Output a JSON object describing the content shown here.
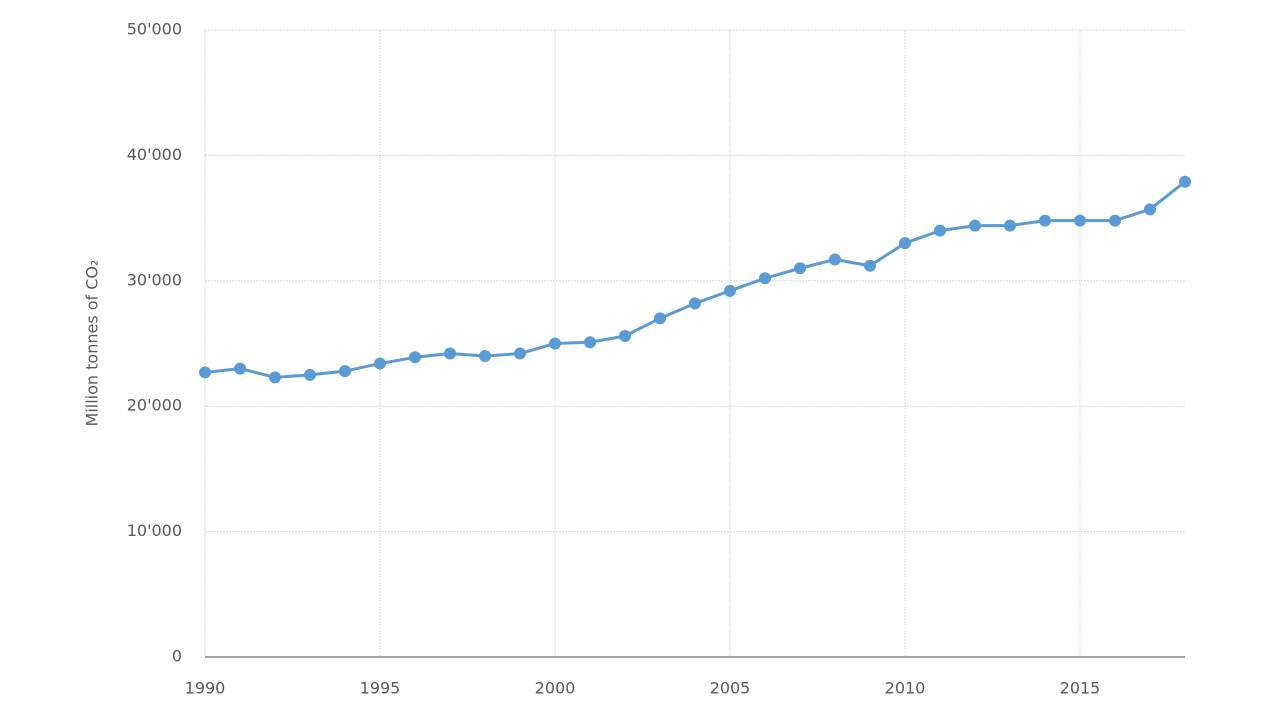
{
  "chart_data": {
    "type": "line",
    "y_label": "Million tonnes of CO₂",
    "x": [
      1990,
      1991,
      1992,
      1993,
      1994,
      1995,
      1996,
      1997,
      1998,
      1999,
      2000,
      2001,
      2002,
      2003,
      2004,
      2005,
      2006,
      2007,
      2008,
      2009,
      2010,
      2011,
      2012,
      2013,
      2014,
      2015,
      2016,
      2017,
      2018
    ],
    "series": [
      {
        "color": "#5b9bd5",
        "values": [
          22700,
          23000,
          22300,
          22500,
          22800,
          23400,
          23900,
          24200,
          24000,
          24200,
          25000,
          25100,
          25600,
          27000,
          28200,
          29200,
          30200,
          31000,
          31700,
          31200,
          33000,
          34000,
          34400,
          34400,
          34800,
          34800,
          34800,
          35700,
          37900
        ]
      }
    ],
    "xlim": [
      1990,
      2018
    ],
    "xticks": [
      1990,
      1995,
      2000,
      2005,
      2010,
      2015
    ],
    "ylim": [
      0,
      50000
    ],
    "yticks": [
      0,
      {
        "value": 10000,
        "label": "10'000"
      },
      {
        "value": 20000,
        "label": "20'000"
      },
      {
        "value": 30000,
        "label": "30'000"
      },
      {
        "value": 40000,
        "label": "40'000"
      },
      {
        "value": 50000,
        "label": "50'000"
      }
    ],
    "grid": true
  }
}
